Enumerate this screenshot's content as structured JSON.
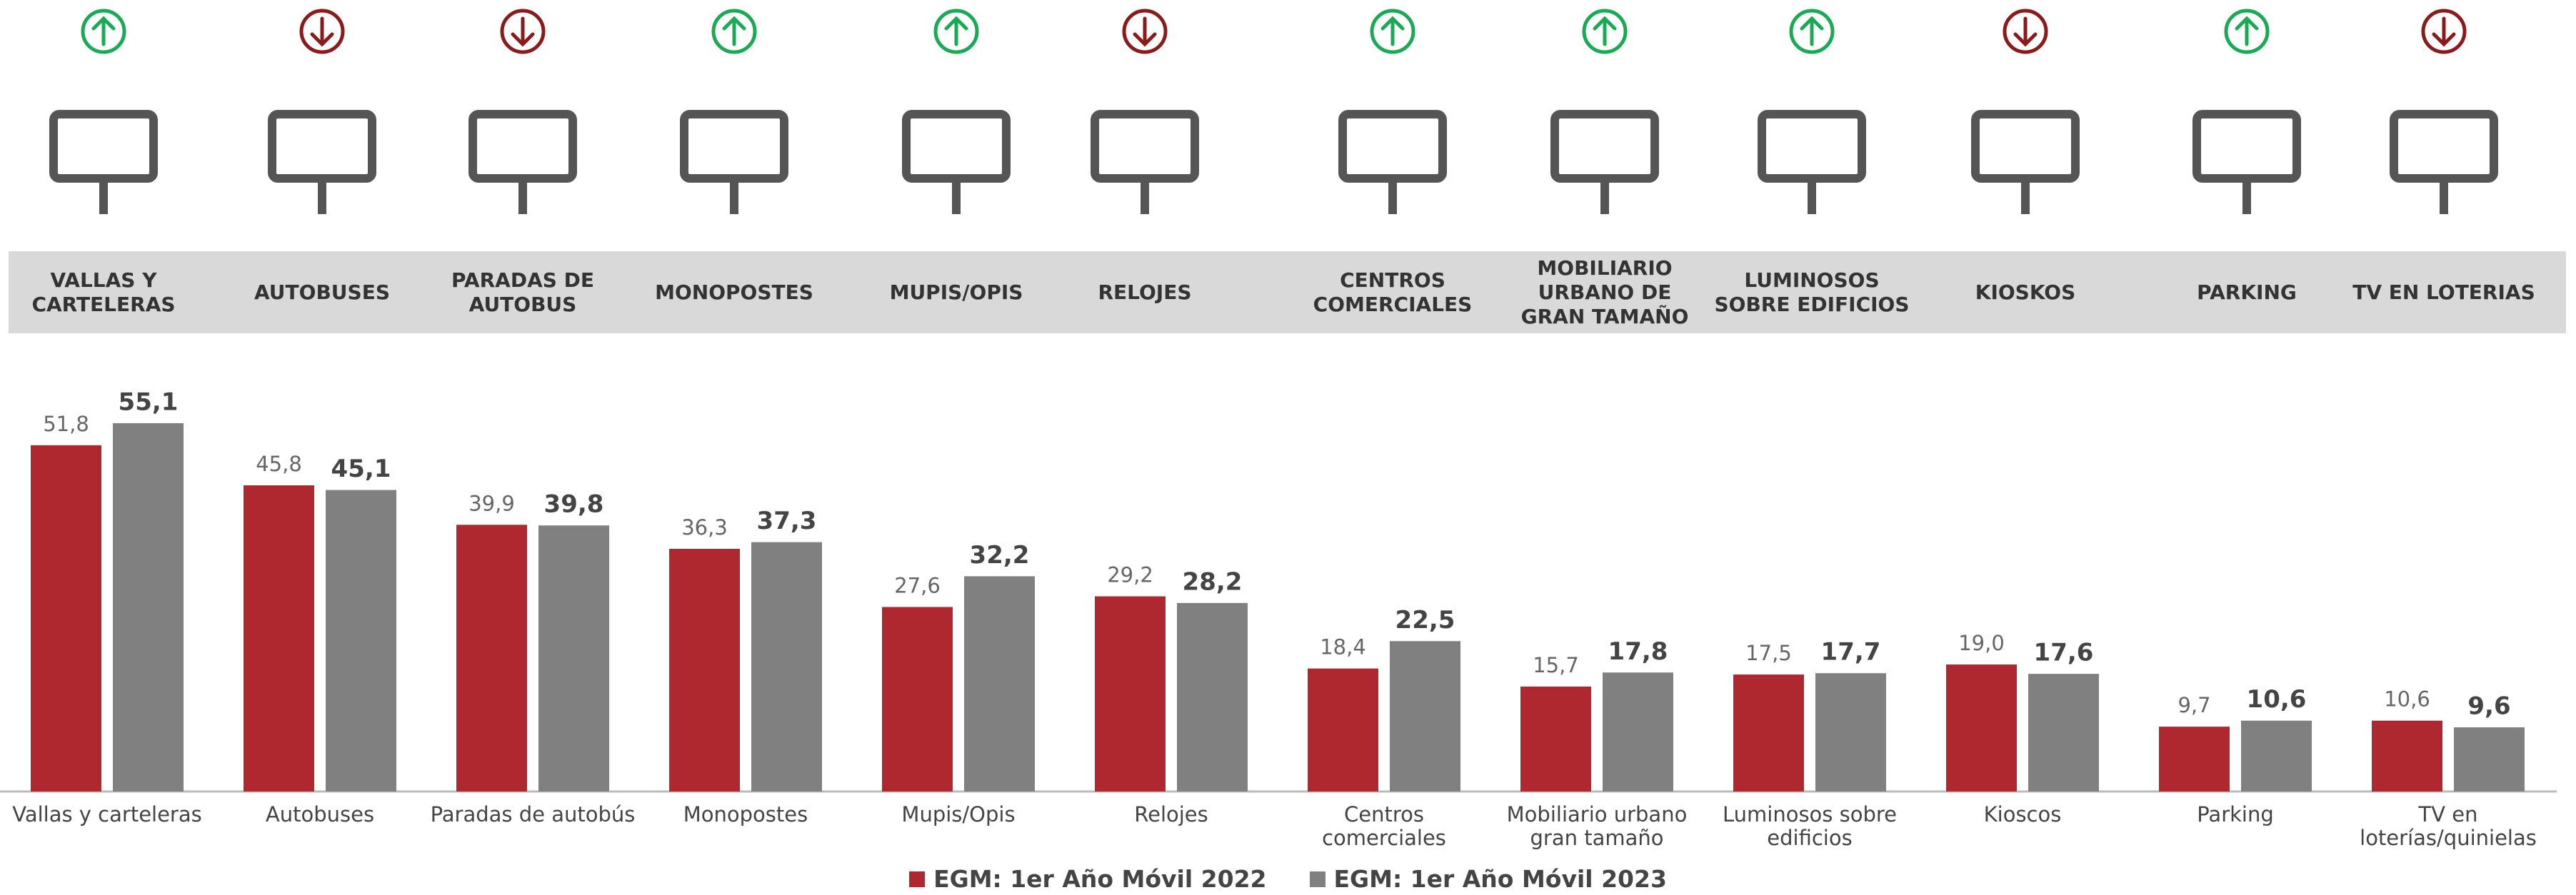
{
  "header": {
    "items": [
      {
        "label": "VALLAS Y CARTELERAS",
        "trend": "up"
      },
      {
        "label": "AUTOBUSES",
        "trend": "down"
      },
      {
        "label": "PARADAS DE AUTOBUS",
        "trend": "down"
      },
      {
        "label": "MONOPOSTES",
        "trend": "up"
      },
      {
        "label": "MUPIS/OPIS",
        "trend": "up"
      },
      {
        "label": "RELOJES",
        "trend": "down"
      },
      {
        "label": "CENTROS COMERCIALES",
        "trend": "up"
      },
      {
        "label": "MOBILIARIO URBANO DE GRAN TAMAÑO",
        "trend": "up"
      },
      {
        "label": "LUMINOSOS SOBRE EDIFICIOS",
        "trend": "up"
      },
      {
        "label": "KIOSKOS",
        "trend": "down"
      },
      {
        "label": "PARKING",
        "trend": "up"
      },
      {
        "label": "TV EN LOTERIAS",
        "trend": "down"
      }
    ]
  },
  "chart_data": {
    "type": "bar",
    "categories": [
      "Vallas y carteleras",
      "Autobuses",
      "Paradas de autobús",
      "Monopostes",
      "Mupis/Opis",
      "Relojes",
      "Centros comerciales",
      "Mobiliario urbano gran tamaño",
      "Luminosos sobre edificios",
      "Kioscos",
      "Parking",
      "TV en loterías/quinielas"
    ],
    "series": [
      {
        "name": "EGM: 1er Año Móvil 2022",
        "color": "#b0282f",
        "values": [
          51.8,
          45.8,
          39.9,
          36.3,
          27.6,
          29.2,
          18.4,
          15.7,
          17.5,
          19.0,
          9.7,
          10.6
        ],
        "value_labels": [
          "51,8",
          "45,8",
          "39,9",
          "36,3",
          "27,6",
          "29,2",
          "18,4",
          "15,7",
          "17,5",
          "19,0",
          "9,7",
          "10,6"
        ]
      },
      {
        "name": "EGM: 1er Año Móvil 2023",
        "color": "#808080",
        "values": [
          55.1,
          45.1,
          39.8,
          37.3,
          32.2,
          28.2,
          22.5,
          17.8,
          17.7,
          17.6,
          10.6,
          9.6
        ],
        "value_labels": [
          "55,1",
          "45,1",
          "39,8",
          "37,3",
          "32,2",
          "28,2",
          "22,5",
          "17,8",
          "17,7",
          "17,6",
          "10,6",
          "9,6"
        ]
      }
    ],
    "ylim": [
      0,
      60
    ],
    "legend": "bottom"
  }
}
